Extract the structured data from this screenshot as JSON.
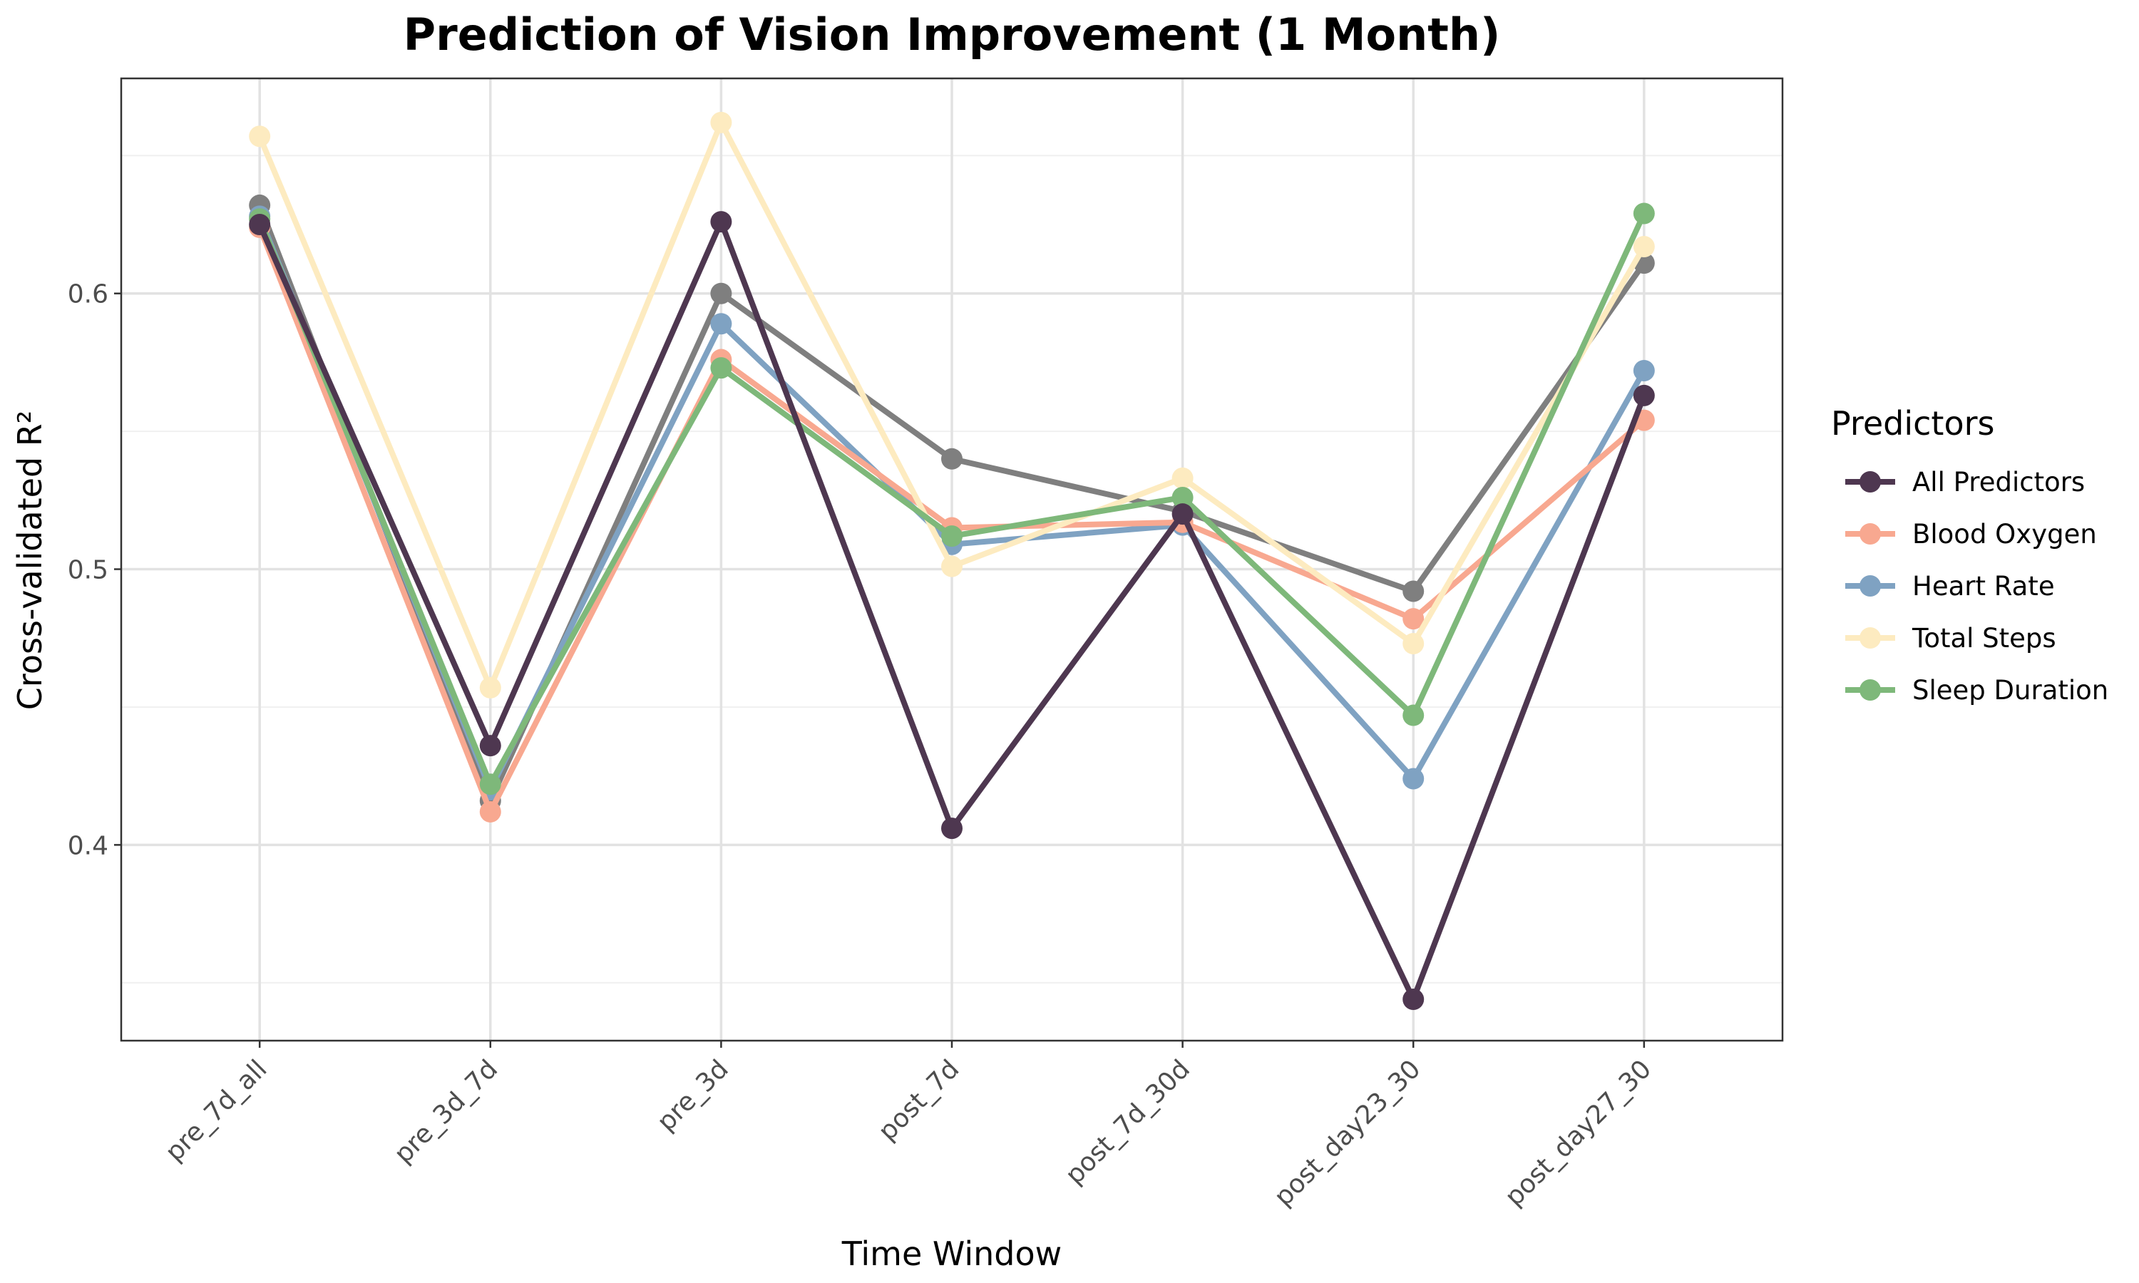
{
  "chart_data": {
    "type": "line",
    "title": "Prediction of Vision Improvement (1 Month)",
    "xlabel": "Time Window",
    "ylabel": "Cross-validated R²",
    "categories": [
      "pre_7d_all",
      "pre_3d_7d",
      "pre_3d",
      "post_7d",
      "post_7d_30d",
      "post_day23_30",
      "post_day27_30"
    ],
    "ylim": [
      0.329,
      0.678
    ],
    "yticks": [
      0.4,
      0.5,
      0.6
    ],
    "ytick_labels": [
      "0.4",
      "0.5",
      "0.6"
    ],
    "grid": true,
    "legend": {
      "title": "Predictors",
      "position": "right"
    },
    "series": [
      {
        "name": "",
        "color": "#7f7f7f",
        "in_legend": false,
        "values": [
          0.632,
          0.416,
          0.6,
          0.54,
          0.521,
          0.492,
          0.611
        ]
      },
      {
        "name": "Heart Rate",
        "color": "#7fa2c2",
        "in_legend": true,
        "values": [
          0.628,
          0.42,
          0.589,
          0.509,
          0.516,
          0.424,
          0.572
        ]
      },
      {
        "name": "Blood Oxygen",
        "color": "#f8a890",
        "in_legend": true,
        "values": [
          0.624,
          0.412,
          0.576,
          0.515,
          0.517,
          0.482,
          0.554
        ]
      },
      {
        "name": "Total Steps",
        "color": "#fdebc0",
        "in_legend": true,
        "values": [
          0.657,
          0.457,
          0.662,
          0.501,
          0.533,
          0.473,
          0.617
        ]
      },
      {
        "name": "Sleep Duration",
        "color": "#7eb87a",
        "in_legend": true,
        "values": [
          0.627,
          0.422,
          0.573,
          0.512,
          0.526,
          0.447,
          0.629
        ]
      },
      {
        "name": "All Predictors",
        "color": "#4e3750",
        "in_legend": true,
        "values": [
          0.625,
          0.436,
          0.626,
          0.406,
          0.52,
          0.344,
          0.563
        ]
      }
    ],
    "legend_order": [
      "All Predictors",
      "Blood Oxygen",
      "Heart Rate",
      "Total Steps",
      "Sleep Duration"
    ]
  }
}
